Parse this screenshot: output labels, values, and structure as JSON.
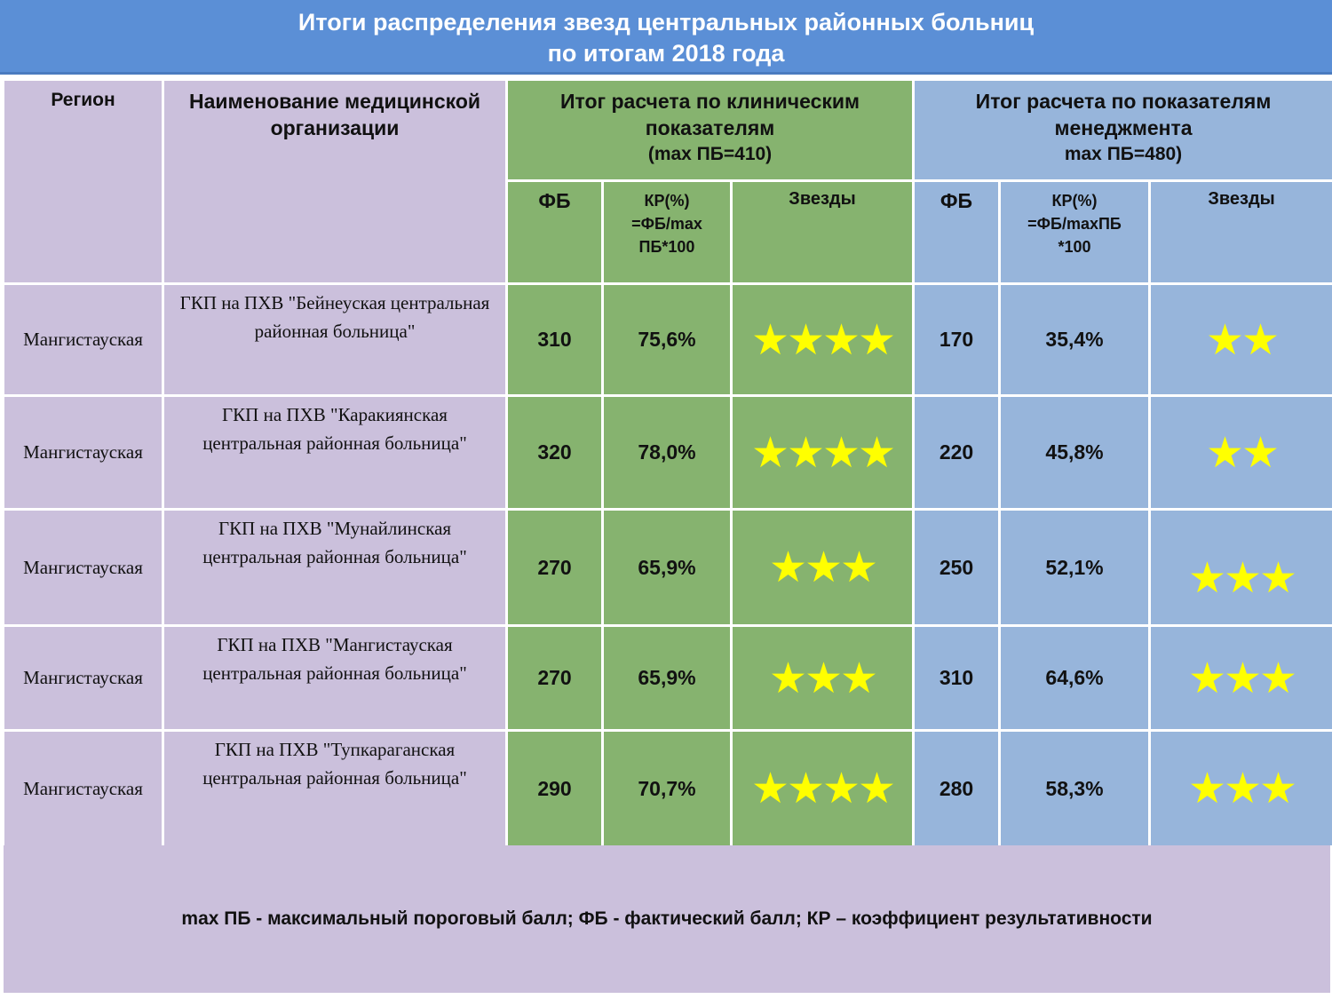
{
  "title": {
    "line1": "Итоги распределения звезд центральных районных больниц",
    "line2": "по итогам 2018 года"
  },
  "header": {
    "region": "Регион",
    "org_line1": "Наименование медицинской",
    "org_line2": "организации",
    "clinical_line1": "Итог расчета по клиническим",
    "clinical_line2": "показателям",
    "clinical_max": "(max ПБ=410)",
    "mgmt_line1": "Итог расчета по показателям",
    "mgmt_line2": "менеджмента",
    "mgmt_max": "max ПБ=480)",
    "clin_fb": "ФБ",
    "clin_kr_1": "КР(%)",
    "clin_kr_2": "=ФБ/max",
    "clin_kr_3": "ПБ*100",
    "clin_stars": "Звезды",
    "mgmt_fb": "ФБ",
    "mgmt_kr_1": "КР(%)",
    "mgmt_kr_2": "=ФБ/maxПБ",
    "mgmt_kr_3": "*100",
    "mgmt_stars": "Звезды"
  },
  "rows": [
    {
      "region": "Мангистауская",
      "org_line1": "ГКП на ПХВ \"Бейнеуская центральная",
      "org_line2": "районная больница\"",
      "clin_fb": "310",
      "clin_kr": "75,6%",
      "clin_stars": "★★★★",
      "mgmt_fb": "170",
      "mgmt_kr": "35,4%",
      "mgmt_stars": "★★"
    },
    {
      "region": "Мангистауская",
      "org_line1": "ГКП на ПХВ \"Каракиянская",
      "org_line2": "центральная районная больница\"",
      "clin_fb": "320",
      "clin_kr": "78,0%",
      "clin_stars": "★★★★",
      "mgmt_fb": "220",
      "mgmt_kr": "45,8%",
      "mgmt_stars": "★★"
    },
    {
      "region": "Мангистауская",
      "org_line1": "ГКП на ПХВ \"Мунайлинская",
      "org_line2": "центральная районная больница\"",
      "clin_fb": "270",
      "clin_kr": "65,9%",
      "clin_stars": "★★★",
      "mgmt_fb": "250",
      "mgmt_kr": "52,1%",
      "mgmt_stars": "★★★"
    },
    {
      "region": "Мангистауская",
      "org_line1": "ГКП на ПХВ \"Мангистауская",
      "org_line2": "центральная районная больница\"",
      "clin_fb": "270",
      "clin_kr": "65,9%",
      "clin_stars": "★★★",
      "mgmt_fb": "310",
      "mgmt_kr": "64,6%",
      "mgmt_stars": "★★★"
    },
    {
      "region": "Мангистауская",
      "org_line1": "ГКП на ПХВ \"Тупкараганская",
      "org_line2": "центральная районная больница\"",
      "clin_fb": "290",
      "clin_kr": "70,7%",
      "clin_stars": "★★★★",
      "mgmt_fb": "280",
      "mgmt_kr": "58,3%",
      "mgmt_stars": "★★★"
    }
  ],
  "footer": "max ПБ - максимальный пороговый балл; ФБ - фактический балл; КР – коэффициент результативности",
  "colors": {
    "title_bg": "#5b8fd6",
    "lavender": "#cbc0dc",
    "green": "#86b36f",
    "blue": "#97b5db",
    "star": "#ffff00"
  }
}
